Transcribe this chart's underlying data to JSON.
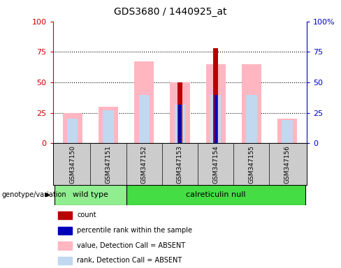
{
  "title": "GDS3680 / 1440925_at",
  "samples": [
    "GSM347150",
    "GSM347151",
    "GSM347152",
    "GSM347153",
    "GSM347154",
    "GSM347155",
    "GSM347156"
  ],
  "pink_bar": [
    25,
    30,
    67,
    50,
    65,
    65,
    20
  ],
  "light_blue_bar": [
    20,
    27,
    40,
    32,
    40,
    40,
    19
  ],
  "red_bar": [
    0,
    0,
    0,
    50,
    78,
    0,
    0
  ],
  "blue_bar": [
    0,
    0,
    0,
    32,
    40,
    0,
    0
  ],
  "left_axis_color": "#CC0000",
  "right_axis_color": "#0000CC",
  "ylim": [
    0,
    100
  ],
  "yticks": [
    0,
    25,
    50,
    75,
    100
  ],
  "pink_color": "#FFB6C1",
  "light_blue_color": "#C0D8F0",
  "red_color": "#BB0000",
  "blue_color": "#0000BB",
  "wt_color": "#90EE90",
  "cn_color": "#44DD44",
  "gray_color": "#CCCCCC",
  "legend_items": [
    {
      "label": "count",
      "color": "#BB0000"
    },
    {
      "label": "percentile rank within the sample",
      "color": "#0000BB"
    },
    {
      "label": "value, Detection Call = ABSENT",
      "color": "#FFB6C1"
    },
    {
      "label": "rank, Detection Call = ABSENT",
      "color": "#C0D8F0"
    }
  ]
}
